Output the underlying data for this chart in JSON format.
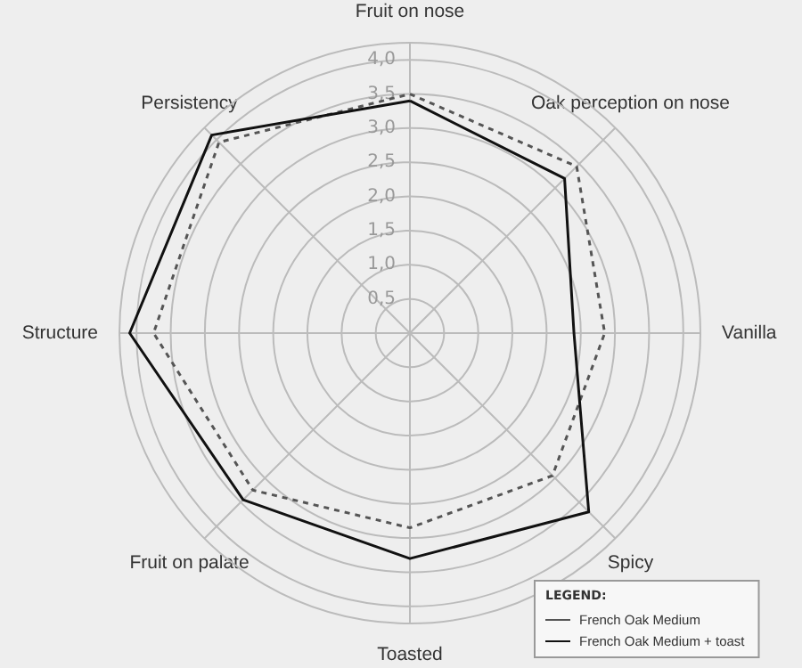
{
  "chart_data": {
    "type": "radar",
    "categories": [
      "Fruit on nose",
      "Oak perception on nose",
      "Vanilla",
      "Spicy",
      "Toasted",
      "Fruit on palate",
      "Structure",
      "Persistency"
    ],
    "series": [
      {
        "name": "French Oak Medium",
        "color": "#555555",
        "line_style": "dashed",
        "values": [
          3.5,
          3.45,
          2.85,
          2.95,
          2.85,
          3.25,
          3.75,
          3.95
        ]
      },
      {
        "name": "French Oak Medium + toast",
        "color": "#111111",
        "line_style": "solid",
        "values": [
          3.4,
          3.2,
          2.4,
          3.7,
          3.3,
          3.45,
          4.1,
          4.1
        ]
      }
    ],
    "ylim": [
      0,
      4.25
    ],
    "yticks": [
      {
        "value": 0.5,
        "label": "0,5"
      },
      {
        "value": 1,
        "label": "1,0"
      },
      {
        "value": 1.5,
        "label": "1,5"
      },
      {
        "value": 2,
        "label": "2,0"
      },
      {
        "value": 2.5,
        "label": "2,5"
      },
      {
        "value": 3,
        "label": "3,0"
      },
      {
        "value": 3.5,
        "label": "3,5"
      },
      {
        "value": 4,
        "label": "4,0"
      }
    ],
    "grid": true,
    "legend": "bottom right",
    "legend_title": "LEGEND:",
    "marker": "none"
  }
}
